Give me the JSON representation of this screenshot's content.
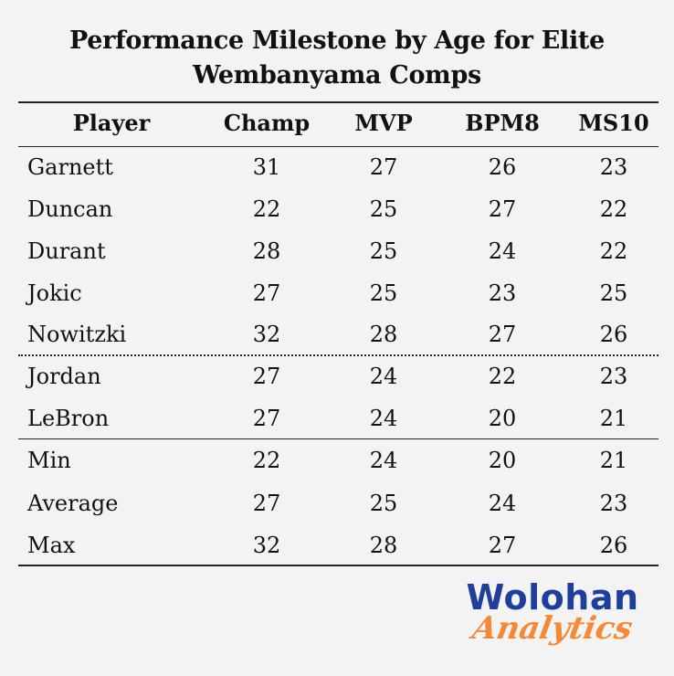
{
  "chart_data": {
    "type": "table",
    "title_line1": "Performance Milestone by Age for Elite",
    "title_line2": "Wembanyama Comps",
    "columns": [
      "Player",
      "Champ",
      "MVP",
      "BPM8",
      "MS10"
    ],
    "rows": [
      {
        "name": "Garnett",
        "values": [
          31,
          27,
          26,
          23
        ]
      },
      {
        "name": "Duncan",
        "values": [
          22,
          25,
          27,
          22
        ]
      },
      {
        "name": "Durant",
        "values": [
          28,
          25,
          24,
          22
        ]
      },
      {
        "name": "Jokic",
        "values": [
          27,
          25,
          23,
          25
        ]
      },
      {
        "name": "Nowitzki",
        "values": [
          32,
          28,
          27,
          26
        ]
      },
      {
        "name": "Jordan",
        "values": [
          27,
          24,
          22,
          23
        ]
      },
      {
        "name": "LeBron",
        "values": [
          27,
          24,
          20,
          21
        ]
      },
      {
        "name": "Min",
        "values": [
          22,
          24,
          20,
          21
        ]
      },
      {
        "name": "Average",
        "values": [
          27,
          25,
          24,
          23
        ]
      },
      {
        "name": "Max",
        "values": [
          32,
          28,
          27,
          26
        ]
      }
    ]
  },
  "logo": {
    "line1": "Wolohan",
    "line2": "Analytics",
    "colors": {
      "primary": "#1f3f9a",
      "accent": "#f28a3a"
    }
  }
}
